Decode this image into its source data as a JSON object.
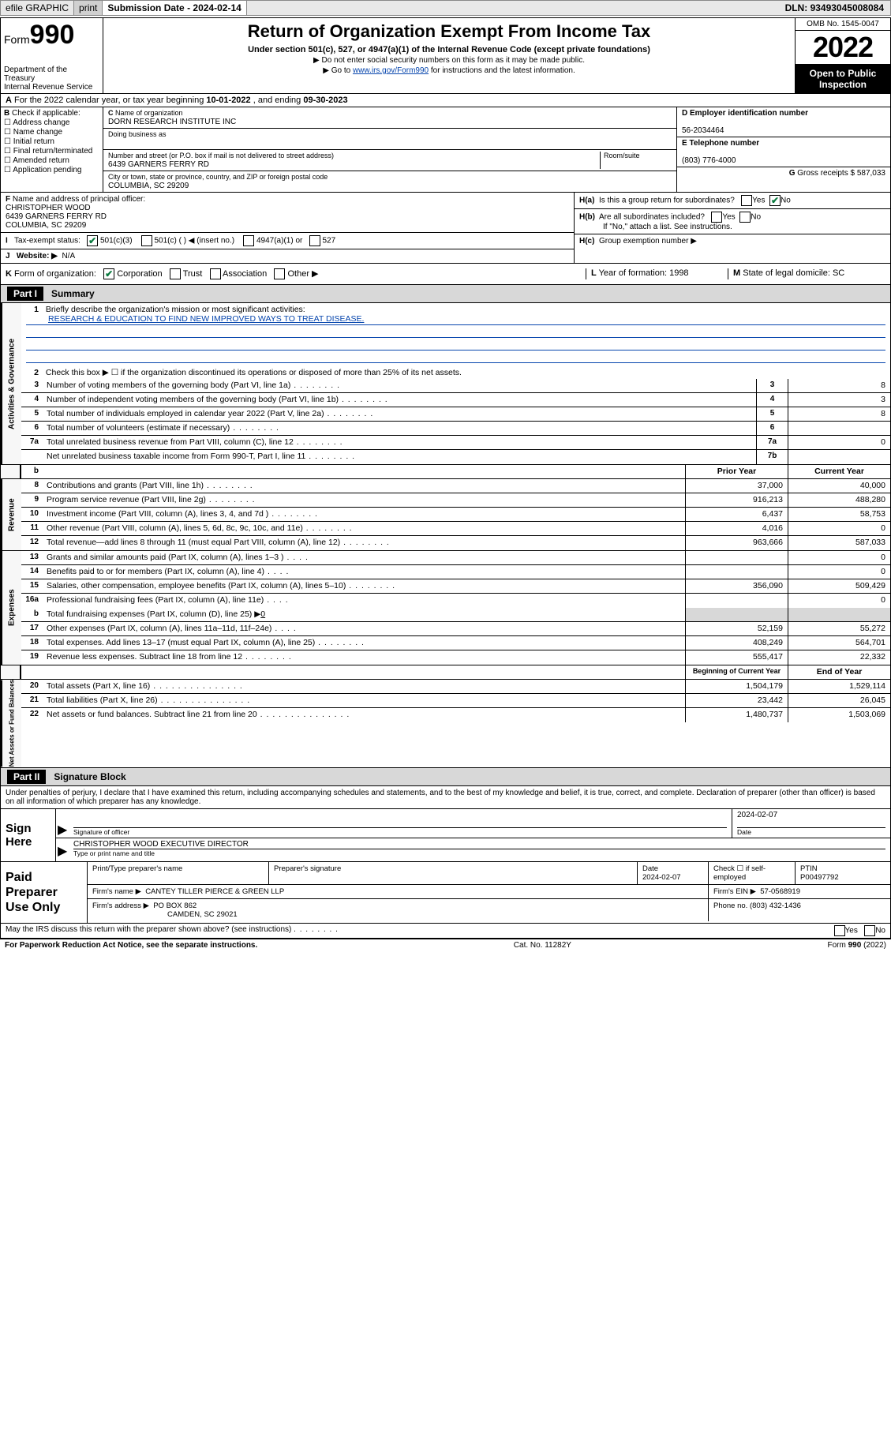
{
  "topbar": {
    "efile": "efile GRAPHIC",
    "print": "print",
    "sub_label": "Submission Date - ",
    "sub_date": "2024-02-14",
    "dln_label": "DLN: ",
    "dln": "93493045008084"
  },
  "header": {
    "form_prefix": "Form",
    "form_no": "990",
    "dept": "Department of the Treasury\nInternal Revenue Service",
    "title": "Return of Organization Exempt From Income Tax",
    "sub1": "Under section 501(c), 527, or 4947(a)(1) of the Internal Revenue Code (except private foundations)",
    "sub2": "▶ Do not enter social security numbers on this form as it may be made public.",
    "sub3_pre": "▶ Go to ",
    "sub3_link": "www.irs.gov/Form990",
    "sub3_post": " for instructions and the latest information.",
    "omb": "OMB No. 1545-0047",
    "year": "2022",
    "inspect": "Open to Public Inspection"
  },
  "row_a": {
    "label": "A",
    "text1": "For the 2022 calendar year, or tax year beginning ",
    "begin": "10-01-2022",
    "text2": " , and ending ",
    "end": "09-30-2023"
  },
  "col_b": {
    "label": "B",
    "text": "Check if applicable:",
    "opts": [
      "Address change",
      "Name change",
      "Initial return",
      "Final return/terminated",
      "Amended return",
      "Application pending"
    ]
  },
  "col_c": {
    "c_lbl": "C",
    "name_lbl": "Name of organization",
    "name": "DORN RESEARCH INSTITUTE INC",
    "dba_lbl": "Doing business as",
    "addr_lbl": "Number and street (or P.O. box if mail is not delivered to street address)",
    "room_lbl": "Room/suite",
    "addr": "6439 GARNERS FERRY RD",
    "city_lbl": "City or town, state or province, country, and ZIP or foreign postal code",
    "city": "COLUMBIA, SC  29209"
  },
  "col_d": {
    "d_lbl": "D Employer identification number",
    "ein": "56-2034464",
    "e_lbl": "E Telephone number",
    "phone": "(803) 776-4000",
    "g_lbl": "G",
    "g_text": "Gross receipts $ ",
    "g_val": "587,033"
  },
  "section_f": {
    "f_lbl": "F",
    "f_text": "Name and address of principal officer:",
    "officer": "CHRISTOPHER WOOD",
    "addr": "6439 GARNERS FERRY RD",
    "city": "COLUMBIA, SC  29209",
    "i_lbl": "I",
    "tax_lbl": "Tax-exempt status:",
    "s501c3": "501(c)(3)",
    "s501c": "501(c) (  ) ◀ (insert no.)",
    "s4947": "4947(a)(1) or",
    "s527": "527",
    "j_lbl": "J",
    "web_lbl": "Website: ▶",
    "web": "N/A"
  },
  "section_h": {
    "ha_lbl": "H(a)",
    "ha_text": "Is this a group return for subordinates?",
    "hb_lbl": "H(b)",
    "hb_text": "Are all subordinates included?",
    "hb_note": "If \"No,\" attach a list. See instructions.",
    "hc_lbl": "H(c)",
    "hc_text": "Group exemption number ▶",
    "yes": "Yes",
    "no": "No"
  },
  "row_k": {
    "k_lbl": "K",
    "k_text": "Form of organization:",
    "corp": "Corporation",
    "trust": "Trust",
    "assoc": "Association",
    "other": "Other ▶",
    "l_lbl": "L",
    "l_text": "Year of formation: ",
    "l_val": "1998",
    "m_lbl": "M",
    "m_text": "State of legal domicile: ",
    "m_val": "SC"
  },
  "part1": {
    "hdr": "Part I",
    "title": "Summary",
    "sections": {
      "gov": "Activities & Governance",
      "rev": "Revenue",
      "exp": "Expenses",
      "net": "Net Assets or Fund Balances"
    },
    "l1_num": "1",
    "l1": "Briefly describe the organization's mission or most significant activities:",
    "l1_val": "RESEARCH & EDUCATION TO FIND NEW IMPROVED WAYS TO TREAT DISEASE.",
    "l2_num": "2",
    "l2": "Check this box ▶ ☐  if the organization discontinued its operations or disposed of more than 25% of its net assets.",
    "prior_hdr": "Prior Year",
    "curr_hdr": "Current Year",
    "begin_hdr": "Beginning of Current Year",
    "end_hdr": "End of Year",
    "lines_single": [
      {
        "n": "3",
        "t": "Number of voting members of the governing body (Part VI, line 1a)",
        "num": "3",
        "v": "8"
      },
      {
        "n": "4",
        "t": "Number of independent voting members of the governing body (Part VI, line 1b)",
        "num": "4",
        "v": "3"
      },
      {
        "n": "5",
        "t": "Total number of individuals employed in calendar year 2022 (Part V, line 2a)",
        "num": "5",
        "v": "8"
      },
      {
        "n": "6",
        "t": "Total number of volunteers (estimate if necessary)",
        "num": "6",
        "v": ""
      },
      {
        "n": "7a",
        "t": "Total unrelated business revenue from Part VIII, column (C), line 12",
        "num": "7a",
        "v": "0"
      },
      {
        "n": "",
        "t": "Net unrelated business taxable income from Form 990-T, Part I, line 11",
        "num": "7b",
        "v": ""
      }
    ],
    "lines_rev": [
      {
        "n": "8",
        "t": "Contributions and grants (Part VIII, line 1h)",
        "p": "37,000",
        "c": "40,000"
      },
      {
        "n": "9",
        "t": "Program service revenue (Part VIII, line 2g)",
        "p": "916,213",
        "c": "488,280"
      },
      {
        "n": "10",
        "t": "Investment income (Part VIII, column (A), lines 3, 4, and 7d )",
        "p": "6,437",
        "c": "58,753"
      },
      {
        "n": "11",
        "t": "Other revenue (Part VIII, column (A), lines 5, 6d, 8c, 9c, 10c, and 11e)",
        "p": "4,016",
        "c": "0"
      },
      {
        "n": "12",
        "t": "Total revenue—add lines 8 through 11 (must equal Part VIII, column (A), line 12)",
        "p": "963,666",
        "c": "587,033"
      }
    ],
    "lines_exp": [
      {
        "n": "13",
        "t": "Grants and similar amounts paid (Part IX, column (A), lines 1–3 )",
        "p": "",
        "c": "0",
        "d": "xs"
      },
      {
        "n": "14",
        "t": "Benefits paid to or for members (Part IX, column (A), line 4)",
        "p": "",
        "c": "0",
        "d": "xs"
      },
      {
        "n": "15",
        "t": "Salaries, other compensation, employee benefits (Part IX, column (A), lines 5–10)",
        "p": "356,090",
        "c": "509,429",
        "d": ""
      },
      {
        "n": "16a",
        "t": "Professional fundraising fees (Part IX, column (A), line 11e)",
        "p": "",
        "c": "0",
        "d": "xs"
      }
    ],
    "l16b_n": "b",
    "l16b": "Total fundraising expenses (Part IX, column (D), line 25) ▶",
    "l16b_v": "0",
    "lines_exp2": [
      {
        "n": "17",
        "t": "Other expenses (Part IX, column (A), lines 11a–11d, 11f–24e)",
        "p": "52,159",
        "c": "55,272",
        "d": "xs"
      },
      {
        "n": "18",
        "t": "Total expenses. Add lines 13–17 (must equal Part IX, column (A), line 25)",
        "p": "408,249",
        "c": "564,701",
        "d": ""
      },
      {
        "n": "19",
        "t": "Revenue less expenses. Subtract line 18 from line 12",
        "p": "555,417",
        "c": "22,332",
        "d": "s"
      }
    ],
    "lines_net": [
      {
        "n": "20",
        "t": "Total assets (Part X, line 16)",
        "p": "1,504,179",
        "c": "1,529,114"
      },
      {
        "n": "21",
        "t": "Total liabilities (Part X, line 26)",
        "p": "23,442",
        "c": "26,045"
      },
      {
        "n": "22",
        "t": "Net assets or fund balances. Subtract line 21 from line 20",
        "p": "1,480,737",
        "c": "1,503,069"
      }
    ]
  },
  "part2": {
    "hdr": "Part II",
    "title": "Signature Block",
    "declare": "Under penalties of perjury, I declare that I have examined this return, including accompanying schedules and statements, and to the best of my knowledge and belief, it is true, correct, and complete. Declaration of preparer (other than officer) is based on all information of which preparer has any knowledge."
  },
  "sign": {
    "label": "Sign Here",
    "sig_lbl": "Signature of officer",
    "date_lbl": "Date",
    "date": "2024-02-07",
    "name": "CHRISTOPHER WOOD  EXECUTIVE DIRECTOR",
    "name_lbl": "Type or print name and title"
  },
  "prep": {
    "label": "Paid Preparer Use Only",
    "pt_name_lbl": "Print/Type preparer's name",
    "pt_sig_lbl": "Preparer's signature",
    "pt_date_lbl": "Date",
    "pt_date": "2024-02-07",
    "chk_lbl": "Check ☐ if self-employed",
    "ptin_lbl": "PTIN",
    "ptin": "P00497792",
    "firm_lbl": "Firm's name   ▶",
    "firm": "CANTEY TILLER PIERCE & GREEN LLP",
    "ein_lbl": "Firm's EIN ▶",
    "ein": "57-0568919",
    "addr_lbl": "Firm's address ▶",
    "addr1": "PO BOX 862",
    "addr2": "CAMDEN, SC  29021",
    "phone_lbl": "Phone no. ",
    "phone": "(803) 432-1436"
  },
  "footer": {
    "discuss": "May the IRS discuss this return with the preparer shown above? (see instructions)",
    "yes": "Yes",
    "no": "No",
    "pra": "For Paperwork Reduction Act Notice, see the separate instructions.",
    "cat": "Cat. No. 11282Y",
    "form": "Form 990 (2022)"
  }
}
